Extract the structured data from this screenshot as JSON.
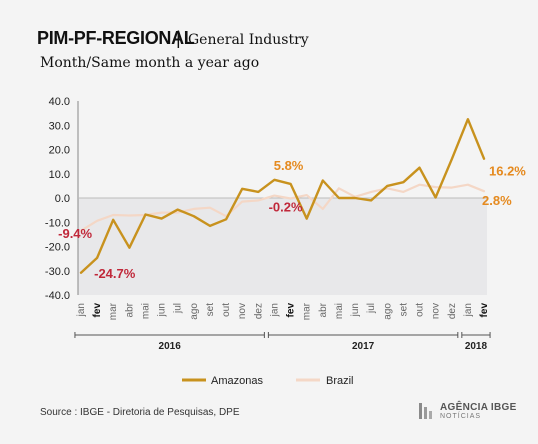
{
  "header": {
    "title": "PIM-PF-REGIONAL",
    "separator": "|",
    "subtitle": "General Industry",
    "subtitle2": "Month/Same month a year ago"
  },
  "footer": {
    "source": "Source : IBGE - Diretoria de Pesquisas, DPE",
    "logo_main": "AGÊNCIA IBGE",
    "logo_sub": "NOTÍCIAS"
  },
  "colors": {
    "amazonas": "#c8921e",
    "brazil": "#f4d7c6",
    "negative_label": "#c0283a",
    "positive_label": "#e58a1f"
  },
  "chart_data": {
    "type": "line",
    "title": "PIM-PF-REGIONAL | General Industry",
    "subtitle": "Month/Same month a year ago",
    "ylim": [
      -40,
      40
    ],
    "yticks": [
      "40.0",
      "30.0",
      "20.0",
      "10.0",
      "0.0",
      "-10.0",
      "-20.0",
      "-30.0",
      "-40.0"
    ],
    "ytick_values": [
      40,
      30,
      20,
      10,
      0,
      -10,
      -20,
      -30,
      -40
    ],
    "categories": [
      "jan",
      "fev",
      "mar",
      "abr",
      "mai",
      "jun",
      "jul",
      "ago",
      "set",
      "out",
      "nov",
      "dez",
      "jan",
      "fev",
      "mar",
      "abr",
      "mai",
      "jun",
      "jul",
      "ago",
      "set",
      "out",
      "nov",
      "dez",
      "jan",
      "fev"
    ],
    "bold_categories": [
      1,
      13,
      25
    ],
    "years": [
      {
        "label": "2016",
        "start": 0,
        "end": 11
      },
      {
        "label": "2017",
        "start": 12,
        "end": 23
      },
      {
        "label": "2018",
        "start": 24,
        "end": 25
      }
    ],
    "series": [
      {
        "name": "Amazonas",
        "values": [
          -30.8,
          -24.7,
          -9.0,
          -20.5,
          -6.8,
          -8.5,
          -4.8,
          -7.5,
          -11.5,
          -8.8,
          3.8,
          2.5,
          7.5,
          5.8,
          -8.5,
          7.2,
          0.0,
          0.0,
          -1.0,
          5.0,
          6.5,
          12.5,
          0.2,
          16.0,
          32.5,
          16.2
        ]
      },
      {
        "name": "Brazil",
        "values": [
          -13.5,
          -9.4,
          -7.0,
          -7.2,
          -7.0,
          -6.0,
          -6.0,
          -4.5,
          -4.0,
          -7.5,
          -1.5,
          -1.0,
          1.0,
          -0.2,
          1.2,
          -4.5,
          4.0,
          0.5,
          2.5,
          4.0,
          2.5,
          5.5,
          4.5,
          4.3,
          5.5,
          2.8
        ]
      }
    ],
    "annotations": [
      {
        "text": "-9.4%",
        "series": "Brazil",
        "index": 1,
        "tone": "negative"
      },
      {
        "text": "-24.7%",
        "series": "Amazonas",
        "index": 1,
        "tone": "negative"
      },
      {
        "text": "5.8%",
        "series": "Amazonas",
        "index": 13,
        "tone": "positive"
      },
      {
        "text": "-0.2%",
        "series": "Brazil",
        "index": 13,
        "tone": "negative"
      },
      {
        "text": "16.2%",
        "series": "Amazonas",
        "index": 25,
        "tone": "positive"
      },
      {
        "text": "2.8%",
        "series": "Brazil",
        "index": 25,
        "tone": "positive"
      }
    ],
    "legend": [
      "Amazonas",
      "Brazil"
    ],
    "legend_position": "bottom",
    "negative_band": true,
    "grid": false
  }
}
